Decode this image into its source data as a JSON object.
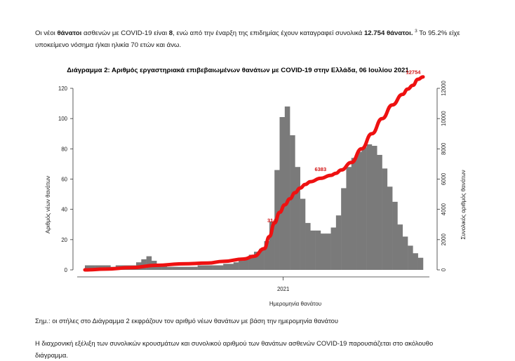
{
  "intro": {
    "t1": "Οι νέοι ",
    "b1": "θάνατοι",
    "t2": " ασθενών με COVID-19 είναι ",
    "b2": "8",
    "t3": ", ενώ από την έναρξη της επιδημίας έχουν καταγραφεί συνολικά ",
    "b3": "12.754 θάνατοι.",
    "sup": "3",
    "t4": " Το 95.2% είχε υποκείμενο νόσημα ή/και ηλικία 70 ετών και άνω."
  },
  "note": "Σημ.: οι στήλες στο Διάγραμμα 2 εκφράζουν τον αριθμό νέων θανάτων με βάση την ημερομηνία θανάτου",
  "outro": {
    "line1": "Η διαχρονική εξέλιξη των συνολικών κρουσμάτων και συνολικού αριθμού των θανάτων ασθενών COVID-19 παρουσιάζεται στο ακόλουθο",
    "line2": "διάγραμμα."
  },
  "chart_data": {
    "type": "bar",
    "title": "Διάγραμμα 2: Αριθμός εργαστηριακά επιβεβαιωμένων θανάτων με COVID-19 στην Ελλάδα, 06 Ιουλίου 2021",
    "xlabel": "Ημερομηνία θανάτου",
    "ylabel": "Αριθμός νέων θανάτων",
    "y2label": "Συνολικός αριθμός θανάτων",
    "ylim": [
      0,
      120
    ],
    "y2lim": [
      0,
      12000
    ],
    "yticks": [
      0,
      20,
      40,
      60,
      80,
      100,
      120
    ],
    "y2ticks": [
      0,
      2000,
      4000,
      6000,
      8000,
      10000,
      12000
    ],
    "xtick_label": "2021",
    "weekly_daily_deaths": [
      3,
      3,
      3,
      3,
      3,
      2,
      3,
      3,
      3,
      3,
      5,
      7,
      9,
      6,
      4,
      3,
      2,
      2,
      2,
      2,
      2,
      2,
      3,
      3,
      3,
      3,
      3,
      4,
      4,
      5,
      6,
      8,
      10,
      12,
      14,
      19,
      32,
      66,
      101,
      108,
      89,
      68,
      47,
      31,
      26,
      26,
      24,
      24,
      28,
      36,
      54,
      68,
      74,
      78,
      81,
      83,
      82,
      76,
      67,
      55,
      45,
      30,
      22,
      16,
      11,
      8
    ],
    "cumulative_curve": [
      [
        0,
        0
      ],
      [
        4,
        50
      ],
      [
        9,
        150
      ],
      [
        14,
        300
      ],
      [
        19,
        400
      ],
      [
        24,
        450
      ],
      [
        27,
        560
      ],
      [
        31,
        720
      ],
      [
        33,
        900
      ],
      [
        35,
        1400
      ],
      [
        36,
        2200
      ],
      [
        37,
        3100
      ],
      [
        38,
        3800
      ],
      [
        39,
        4300
      ],
      [
        40,
        4700
      ],
      [
        41,
        5100
      ],
      [
        42,
        5400
      ],
      [
        43,
        5650
      ],
      [
        44,
        5830
      ],
      [
        46,
        6050
      ],
      [
        48,
        6250
      ],
      [
        49,
        6383
      ],
      [
        50,
        6600
      ],
      [
        52,
        7100
      ],
      [
        54,
        8000
      ],
      [
        56,
        9000
      ],
      [
        58,
        10000
      ],
      [
        60,
        10900
      ],
      [
        62,
        11600
      ],
      [
        63,
        11950
      ],
      [
        64,
        12200
      ],
      [
        65,
        12600
      ],
      [
        66,
        12754
      ]
    ],
    "annotations": [
      {
        "text": "12754",
        "x": 66,
        "y2": 12754
      },
      {
        "text": "6383",
        "x": 49,
        "y2": 6383
      },
      {
        "text": "314",
        "x": 37,
        "y2": 3140
      }
    ],
    "series": [
      {
        "name": "",
        "type": "bar",
        "color": "#7a7a7a"
      },
      {
        "name": "",
        "type": "line",
        "axis": "y2",
        "color": "#ee1111"
      }
    ]
  }
}
